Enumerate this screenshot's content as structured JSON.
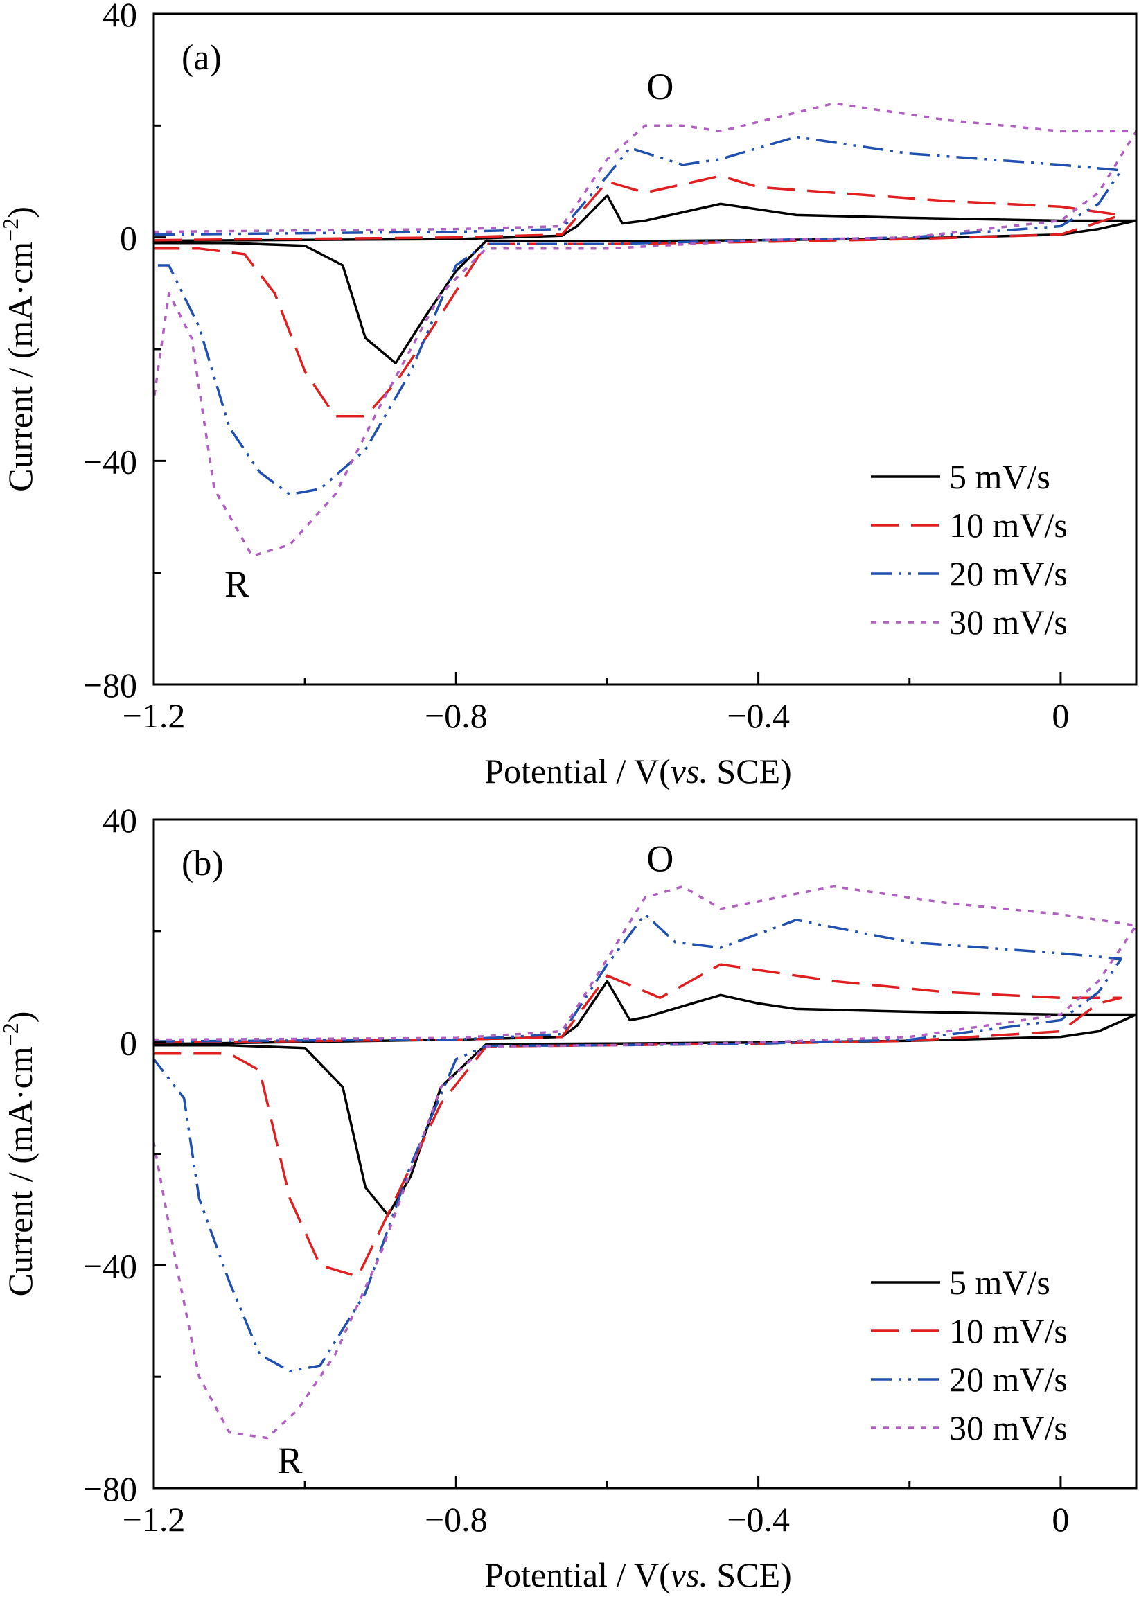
{
  "chart_data": [
    {
      "type": "line",
      "panel_label": "(a)",
      "xlabel": "Potential / V(vs. SCE)",
      "xlabel_main": "Potential / V(",
      "xlabel_italic": "vs.",
      "xlabel_end": " SCE)",
      "ylabel": "Current / (mA·cm⁻²)",
      "ylabel_main": "Current / (mA·cm",
      "ylabel_sup": "−2",
      "ylabel_end": ")",
      "xlim": [
        -1.2,
        0.1
      ],
      "ylim": [
        -80,
        40
      ],
      "x_ticks": [
        -1.2,
        -0.8,
        -0.4,
        0
      ],
      "x_tick_labels": [
        "−1.2",
        "−0.8",
        "−0.4",
        "0"
      ],
      "y_ticks": [
        40,
        0,
        -40,
        -80
      ],
      "y_tick_labels": [
        "40",
        "0",
        "−40",
        "−80"
      ],
      "grid": false,
      "legend_position": "bottom-right",
      "annotations": [
        {
          "text": "O",
          "x": -0.53,
          "y": 27
        },
        {
          "text": "R",
          "x": -1.09,
          "y": -62
        }
      ],
      "series": [
        {
          "name": "5 mV/s",
          "color": "#000000",
          "dash": "solid",
          "forward": [
            [
              -1.2,
              -0.6
            ],
            [
              -0.8,
              -0.3
            ],
            [
              -0.66,
              0.3
            ],
            [
              -0.64,
              2
            ],
            [
              -0.6,
              7.5
            ],
            [
              -0.58,
              2.5
            ],
            [
              -0.55,
              3
            ],
            [
              -0.45,
              6
            ],
            [
              -0.4,
              5
            ],
            [
              -0.35,
              4
            ],
            [
              -0.2,
              3.5
            ],
            [
              0,
              3
            ],
            [
              0.1,
              3
            ]
          ],
          "reverse": [
            [
              0.1,
              3
            ],
            [
              0.05,
              1.5
            ],
            [
              0,
              0.5
            ],
            [
              -0.2,
              -0.2
            ],
            [
              -0.4,
              -0.5
            ],
            [
              -0.6,
              -0.7
            ],
            [
              -0.76,
              -0.6
            ],
            [
              -0.8,
              -6
            ],
            [
              -0.84,
              -14
            ],
            [
              -0.88,
              -22.5
            ],
            [
              -0.92,
              -18
            ],
            [
              -0.95,
              -5
            ],
            [
              -1.0,
              -1.5
            ],
            [
              -1.1,
              -1
            ],
            [
              -1.2,
              -1
            ]
          ]
        },
        {
          "name": "10 mV/s",
          "color": "#e02020",
          "dash": "long-dash",
          "forward": [
            [
              -1.2,
              -0.5
            ],
            [
              -0.8,
              0
            ],
            [
              -0.66,
              0.5
            ],
            [
              -0.6,
              10
            ],
            [
              -0.55,
              8
            ],
            [
              -0.45,
              11
            ],
            [
              -0.4,
              9
            ],
            [
              -0.3,
              8
            ],
            [
              -0.15,
              6.5
            ],
            [
              0,
              5.5
            ],
            [
              0.08,
              4
            ]
          ],
          "reverse": [
            [
              0.08,
              4
            ],
            [
              0,
              0.5
            ],
            [
              -0.2,
              -0.3
            ],
            [
              -0.4,
              -0.8
            ],
            [
              -0.6,
              -1.2
            ],
            [
              -0.76,
              -1.2
            ],
            [
              -0.84,
              -18
            ],
            [
              -0.88,
              -26
            ],
            [
              -0.92,
              -32
            ],
            [
              -0.96,
              -32
            ],
            [
              -1.0,
              -24
            ],
            [
              -1.04,
              -10
            ],
            [
              -1.08,
              -3
            ],
            [
              -1.14,
              -2
            ],
            [
              -1.2,
              -2
            ]
          ]
        },
        {
          "name": "20 mV/s",
          "color": "#2050b0",
          "dash": "dash-dot-dot",
          "forward": [
            [
              -1.2,
              0.5
            ],
            [
              -0.8,
              1
            ],
            [
              -0.66,
              1.5
            ],
            [
              -0.6,
              11
            ],
            [
              -0.57,
              16
            ],
            [
              -0.5,
              13
            ],
            [
              -0.45,
              14
            ],
            [
              -0.35,
              18
            ],
            [
              -0.2,
              15
            ],
            [
              0,
              13
            ],
            [
              0.08,
              12
            ]
          ],
          "reverse": [
            [
              0.08,
              12
            ],
            [
              0.05,
              6
            ],
            [
              0,
              2
            ],
            [
              -0.2,
              0
            ],
            [
              -0.4,
              -0.5
            ],
            [
              -0.6,
              -1.2
            ],
            [
              -0.76,
              -1.2
            ],
            [
              -0.8,
              -5
            ],
            [
              -0.86,
              -24
            ],
            [
              -0.92,
              -38
            ],
            [
              -0.98,
              -45
            ],
            [
              -1.02,
              -46
            ],
            [
              -1.06,
              -42
            ],
            [
              -1.1,
              -34
            ],
            [
              -1.14,
              -16
            ],
            [
              -1.18,
              -5
            ],
            [
              -1.2,
              -5
            ]
          ]
        },
        {
          "name": "30 mV/s",
          "color": "#b060c0",
          "dash": "dotted",
          "forward": [
            [
              -1.2,
              1
            ],
            [
              -0.8,
              1.5
            ],
            [
              -0.66,
              2
            ],
            [
              -0.6,
              14
            ],
            [
              -0.55,
              20
            ],
            [
              -0.5,
              20
            ],
            [
              -0.45,
              19
            ],
            [
              -0.3,
              24
            ],
            [
              -0.15,
              21
            ],
            [
              0,
              19
            ],
            [
              0.1,
              19
            ]
          ],
          "reverse": [
            [
              0.1,
              19
            ],
            [
              0.05,
              8
            ],
            [
              0,
              3
            ],
            [
              -0.2,
              0
            ],
            [
              -0.4,
              -0.5
            ],
            [
              -0.6,
              -2
            ],
            [
              -0.76,
              -2
            ],
            [
              -0.82,
              -10
            ],
            [
              -0.9,
              -30
            ],
            [
              -0.96,
              -46
            ],
            [
              -1.02,
              -55
            ],
            [
              -1.07,
              -57
            ],
            [
              -1.12,
              -45
            ],
            [
              -1.15,
              -18
            ],
            [
              -1.18,
              -10
            ],
            [
              -1.2,
              -29
            ]
          ]
        }
      ]
    },
    {
      "type": "line",
      "panel_label": "(b)",
      "xlabel": "Potential / V(vs. SCE)",
      "xlabel_main": "Potential / V(",
      "xlabel_italic": "vs.",
      "xlabel_end": " SCE)",
      "ylabel": "Current / (mA·cm⁻²)",
      "ylabel_main": "Current / (mA·cm",
      "ylabel_sup": "−2",
      "ylabel_end": ")",
      "xlim": [
        -1.2,
        0.1
      ],
      "ylim": [
        -80,
        40
      ],
      "x_ticks": [
        -1.2,
        -0.8,
        -0.4,
        0
      ],
      "x_tick_labels": [
        "−1.2",
        "−0.8",
        "−0.4",
        "0"
      ],
      "y_ticks": [
        40,
        0,
        -40,
        -80
      ],
      "y_tick_labels": [
        "40",
        "0",
        "−40",
        "−80"
      ],
      "grid": false,
      "legend_position": "bottom-right",
      "annotations": [
        {
          "text": "O",
          "x": -0.53,
          "y": 33
        },
        {
          "text": "R",
          "x": -1.02,
          "y": -75
        }
      ],
      "series": [
        {
          "name": "5 mV/s",
          "color": "#000000",
          "dash": "solid",
          "forward": [
            [
              -1.2,
              -0.3
            ],
            [
              -0.8,
              0.5
            ],
            [
              -0.66,
              1
            ],
            [
              -0.64,
              3
            ],
            [
              -0.6,
              11
            ],
            [
              -0.57,
              4
            ],
            [
              -0.55,
              4.5
            ],
            [
              -0.45,
              8.5
            ],
            [
              -0.4,
              7
            ],
            [
              -0.35,
              6
            ],
            [
              -0.2,
              5.5
            ],
            [
              0,
              5
            ],
            [
              0.1,
              5
            ]
          ],
          "reverse": [
            [
              0.1,
              5
            ],
            [
              0.05,
              2
            ],
            [
              0,
              1
            ],
            [
              -0.2,
              0.3
            ],
            [
              -0.4,
              0
            ],
            [
              -0.6,
              -0.2
            ],
            [
              -0.76,
              -0.3
            ],
            [
              -0.82,
              -8
            ],
            [
              -0.86,
              -24
            ],
            [
              -0.89,
              -31
            ],
            [
              -0.92,
              -26
            ],
            [
              -0.95,
              -8
            ],
            [
              -1.0,
              -1
            ],
            [
              -1.1,
              -0.5
            ],
            [
              -1.2,
              -0.5
            ]
          ]
        },
        {
          "name": "10 mV/s",
          "color": "#e02020",
          "dash": "long-dash",
          "forward": [
            [
              -1.2,
              0
            ],
            [
              -0.8,
              0.5
            ],
            [
              -0.66,
              1
            ],
            [
              -0.6,
              12
            ],
            [
              -0.53,
              8
            ],
            [
              -0.45,
              14
            ],
            [
              -0.4,
              13
            ],
            [
              -0.3,
              11
            ],
            [
              -0.15,
              9
            ],
            [
              0,
              8
            ],
            [
              0.08,
              8
            ]
          ],
          "reverse": [
            [
              0.08,
              8
            ],
            [
              0.05,
              7
            ],
            [
              0,
              2
            ],
            [
              -0.2,
              0.3
            ],
            [
              -0.4,
              -0.2
            ],
            [
              -0.6,
              -0.5
            ],
            [
              -0.76,
              -0.7
            ],
            [
              -0.82,
              -11
            ],
            [
              -0.88,
              -28
            ],
            [
              -0.93,
              -42
            ],
            [
              -0.98,
              -40
            ],
            [
              -1.02,
              -28
            ],
            [
              -1.06,
              -5
            ],
            [
              -1.1,
              -2
            ],
            [
              -1.2,
              -2
            ]
          ]
        },
        {
          "name": "20 mV/s",
          "color": "#2050b0",
          "dash": "dash-dot-dot",
          "forward": [
            [
              -1.2,
              0.2
            ],
            [
              -0.8,
              0.5
            ],
            [
              -0.66,
              1.5
            ],
            [
              -0.6,
              14
            ],
            [
              -0.55,
              23
            ],
            [
              -0.51,
              18
            ],
            [
              -0.45,
              17
            ],
            [
              -0.35,
              22
            ],
            [
              -0.2,
              18
            ],
            [
              0,
              16
            ],
            [
              0.08,
              15
            ]
          ],
          "reverse": [
            [
              0.08,
              15
            ],
            [
              0.05,
              9
            ],
            [
              0,
              4
            ],
            [
              -0.2,
              0.5
            ],
            [
              -0.4,
              -0.2
            ],
            [
              -0.6,
              -0.5
            ],
            [
              -0.76,
              -0.6
            ],
            [
              -0.8,
              -3
            ],
            [
              -0.86,
              -22
            ],
            [
              -0.92,
              -45
            ],
            [
              -0.98,
              -58
            ],
            [
              -1.02,
              -59
            ],
            [
              -1.06,
              -56
            ],
            [
              -1.1,
              -43
            ],
            [
              -1.14,
              -28
            ],
            [
              -1.16,
              -10
            ],
            [
              -1.2,
              -3
            ]
          ]
        },
        {
          "name": "30 mV/s",
          "color": "#b060c0",
          "dash": "dotted",
          "forward": [
            [
              -1.2,
              0.5
            ],
            [
              -0.8,
              0.8
            ],
            [
              -0.66,
              2
            ],
            [
              -0.6,
              15
            ],
            [
              -0.55,
              26
            ],
            [
              -0.5,
              28
            ],
            [
              -0.45,
              24
            ],
            [
              -0.3,
              28
            ],
            [
              -0.15,
              25
            ],
            [
              0,
              23
            ],
            [
              0.1,
              21
            ]
          ],
          "reverse": [
            [
              0.1,
              21
            ],
            [
              0.05,
              11
            ],
            [
              0,
              5
            ],
            [
              -0.2,
              1
            ],
            [
              -0.4,
              0
            ],
            [
              -0.6,
              -0.5
            ],
            [
              -0.76,
              -0.7
            ],
            [
              -0.82,
              -8
            ],
            [
              -0.9,
              -38
            ],
            [
              -0.96,
              -56
            ],
            [
              -1.01,
              -66
            ],
            [
              -1.05,
              -71
            ],
            [
              -1.1,
              -70
            ],
            [
              -1.14,
              -60
            ],
            [
              -1.17,
              -40
            ],
            [
              -1.2,
              -18
            ]
          ]
        }
      ]
    }
  ]
}
